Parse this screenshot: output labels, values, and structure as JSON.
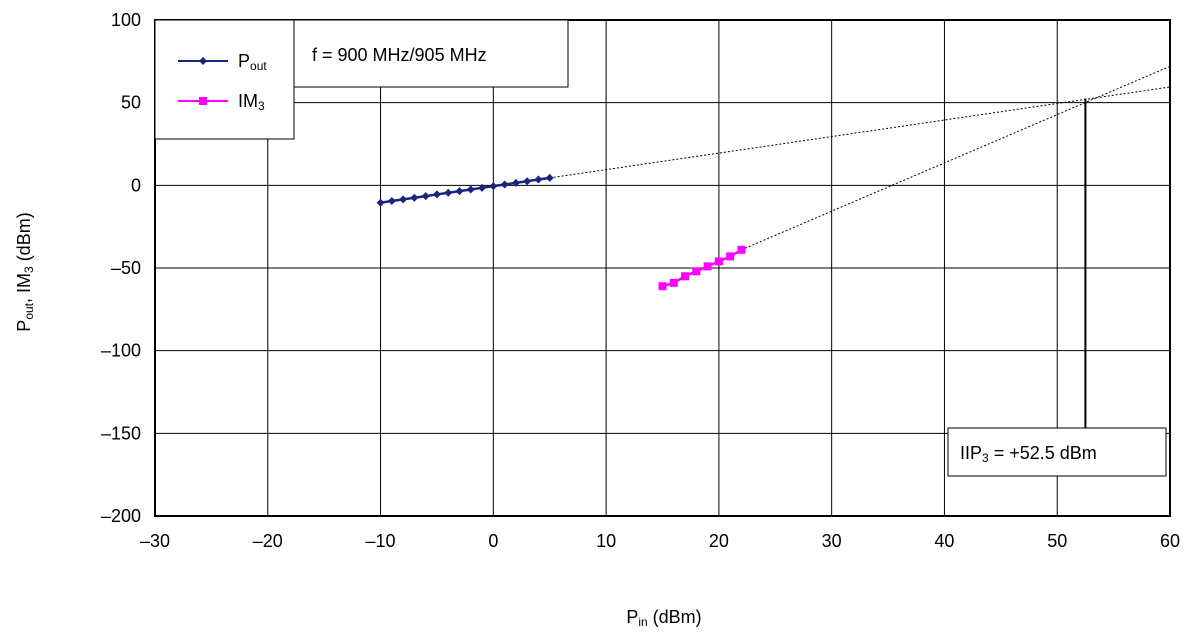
{
  "chart_data": {
    "type": "line",
    "x_axis": {
      "label_main": "P",
      "label_sub": "in",
      "label_rest": " (dBm)",
      "range": [
        -30,
        60
      ],
      "ticks": [
        -30,
        -20,
        -10,
        0,
        10,
        20,
        30,
        40,
        50,
        60
      ],
      "tick_labels": [
        "–30",
        "–20",
        "–10",
        "0",
        "10",
        "20",
        "30",
        "40",
        "50",
        "60"
      ]
    },
    "y_axis": {
      "label_parts": [
        "P",
        "out",
        ", IM",
        "3",
        " (dBm)"
      ],
      "range": [
        -200,
        100
      ],
      "ticks": [
        -200,
        -150,
        -100,
        -50,
        0,
        50,
        100
      ],
      "tick_labels": [
        "–200",
        "–150",
        "–100",
        "–50",
        "0",
        "50",
        "100"
      ]
    },
    "grid": true,
    "legend_position": "top-left",
    "series": [
      {
        "name_main": "P",
        "name_sub": "out",
        "color": "#1a237e",
        "marker": "diamond",
        "x": [
          -10,
          -9,
          -8,
          -7,
          -6,
          -5,
          -4,
          -3,
          -2,
          -1,
          0,
          1,
          2,
          3,
          4,
          5
        ],
        "y": [
          -10.5,
          -9.5,
          -8.5,
          -7.5,
          -6.5,
          -5.5,
          -4.5,
          -3.5,
          -2.5,
          -1.5,
          -0.5,
          0.5,
          1.5,
          2.5,
          3.5,
          4.5
        ]
      },
      {
        "name_main": "IM",
        "name_sub": "3",
        "color": "#ff00ff",
        "marker": "square",
        "x": [
          15,
          16,
          17,
          18,
          19,
          20,
          21,
          22
        ],
        "y": [
          -61,
          -59,
          -55,
          -52,
          -49,
          -46,
          -43,
          -39
        ]
      }
    ],
    "extrapolations": [
      {
        "from": [
          5,
          4.5
        ],
        "to": [
          60,
          59.5
        ],
        "style": "dotted"
      },
      {
        "from": [
          22,
          -39
        ],
        "to": [
          60,
          72
        ],
        "style": "dotted"
      }
    ],
    "intercept_marker": {
      "x": 52.5,
      "y_from": 52.5,
      "y_to": -165
    },
    "annotations": {
      "frequency": "f = 900 MHz/905 MHz",
      "iip3_main": "IIP",
      "iip3_sub": "3",
      "iip3_rest": " = +52.5 dBm"
    }
  }
}
